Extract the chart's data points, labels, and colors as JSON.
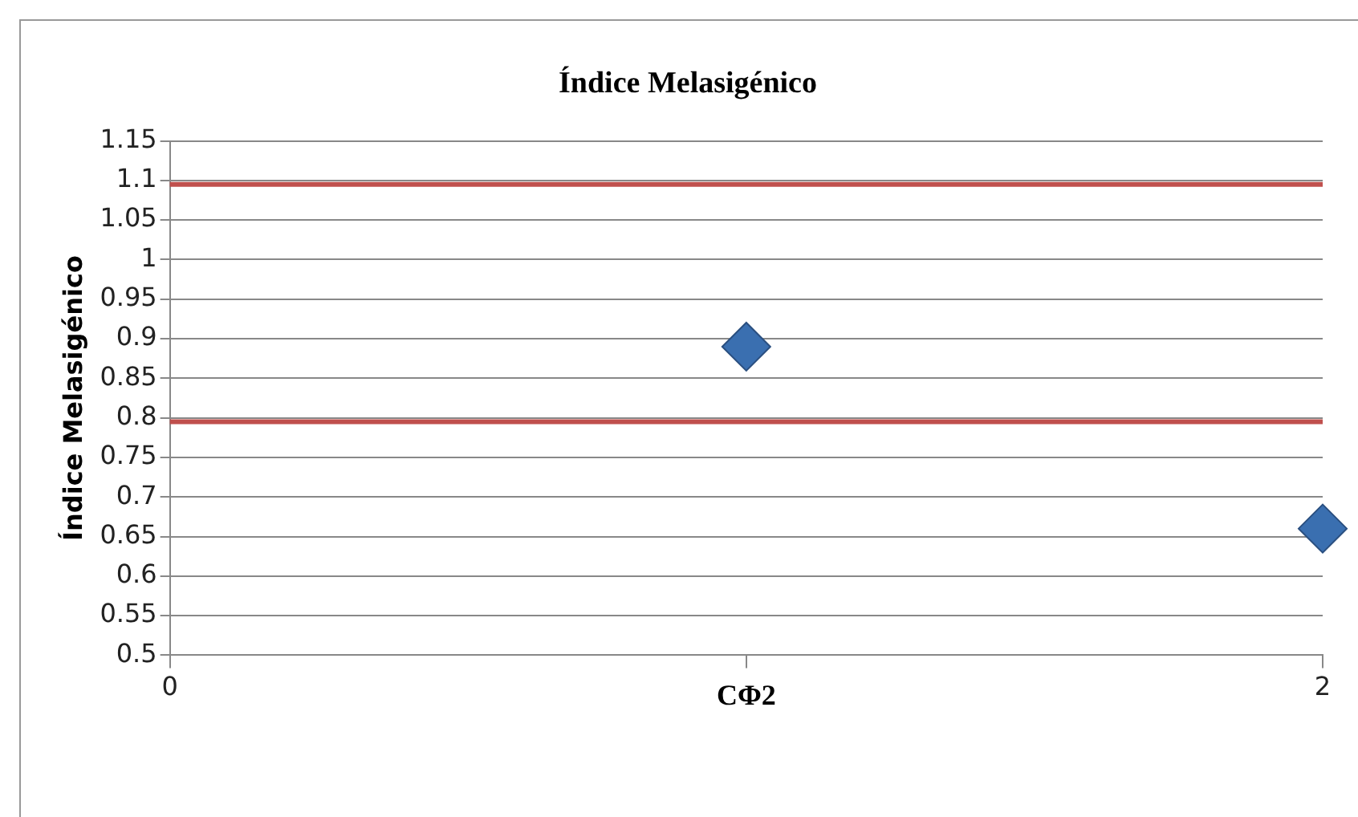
{
  "chart_data": {
    "type": "scatter",
    "title": "Índice Melasigénico",
    "xlabel": "CΦ2",
    "ylabel": "Índice Melasigénico",
    "x": [
      1,
      2
    ],
    "values": [
      0.89,
      0.66
    ],
    "color": "#3a6fb0",
    "marker": "diamond",
    "xlim": [
      0,
      2
    ],
    "xticks": [
      0,
      {
        "value": 1,
        "label": null
      },
      2
    ],
    "ylim": [
      0.5,
      1.15
    ],
    "yticks": [
      0.5,
      0.55,
      0.6,
      0.65,
      0.7,
      0.75,
      0.8,
      0.85,
      0.9,
      0.95,
      1,
      1.05,
      1.1,
      1.15
    ],
    "ref_lines": [
      {
        "axis": "y",
        "value": 1.095,
        "label": null,
        "color": "#c0504d"
      },
      {
        "axis": "y",
        "value": 0.795,
        "label": null,
        "color": "#c0504d"
      }
    ],
    "grid": "y",
    "legend": false
  }
}
